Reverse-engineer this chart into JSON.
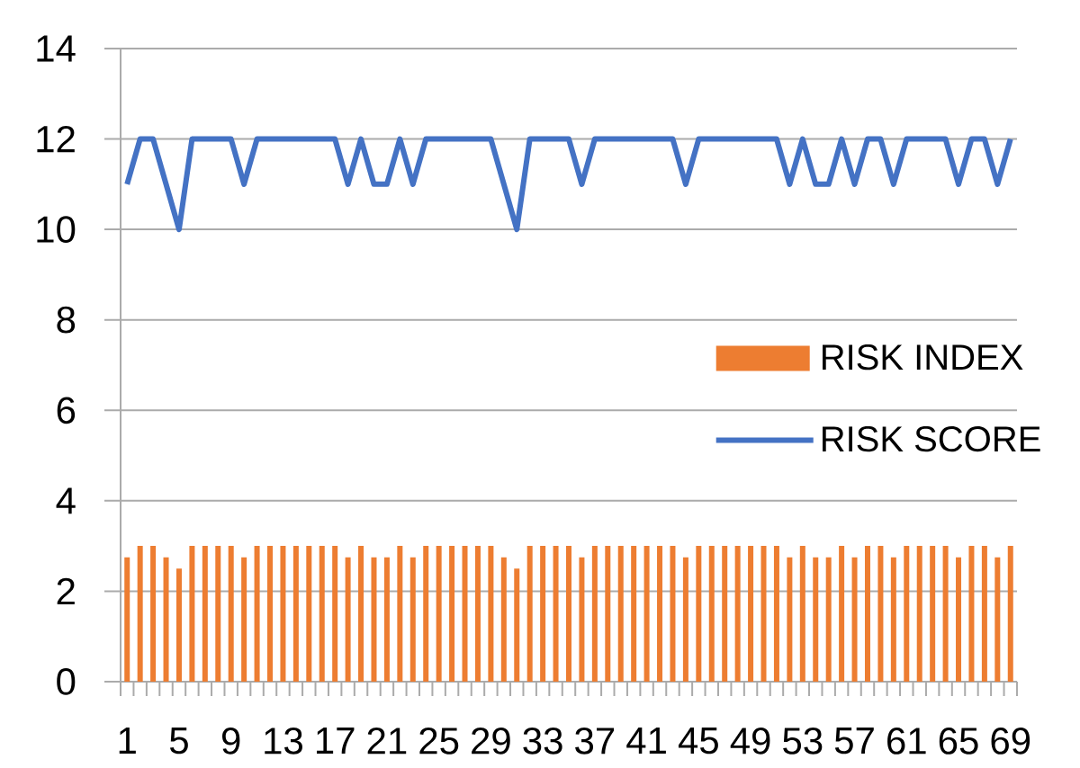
{
  "chart_data": {
    "type": "bar",
    "categories": [
      "1",
      null,
      null,
      null,
      "5",
      null,
      null,
      null,
      "9",
      null,
      null,
      null,
      "13",
      null,
      null,
      null,
      "17",
      null,
      null,
      null,
      "21",
      null,
      null,
      null,
      "25",
      null,
      null,
      null,
      "29",
      null,
      null,
      null,
      "33",
      null,
      null,
      null,
      "37",
      null,
      null,
      null,
      "41",
      null,
      null,
      null,
      "45",
      null,
      null,
      null,
      "49",
      null,
      null,
      null,
      "53",
      null,
      null,
      null,
      "57",
      null,
      null,
      null,
      "61",
      null,
      null,
      null,
      "65",
      null,
      null,
      null,
      "69"
    ],
    "series": [
      {
        "name": "RISK INDEX",
        "color": "#ed7d31",
        "values": [
          2.75,
          3,
          3,
          2.75,
          2.5,
          3,
          3,
          3,
          3,
          2.75,
          3,
          3,
          3,
          3,
          3,
          3,
          3,
          2.75,
          3,
          2.75,
          2.75,
          3,
          2.75,
          3,
          3,
          3,
          3,
          3,
          3,
          2.75,
          2.5,
          3,
          3,
          3,
          3,
          2.75,
          3,
          3,
          3,
          3,
          3,
          3,
          3,
          2.75,
          3,
          3,
          3,
          3,
          3,
          3,
          3,
          2.75,
          3,
          2.75,
          2.75,
          3,
          2.75,
          3,
          3,
          2.75,
          3,
          3,
          3,
          3,
          2.75,
          3,
          3,
          2.75,
          3
        ]
      },
      {
        "name": "RISK SCORE",
        "type": "line",
        "color": "#4472c4",
        "values": [
          11,
          12,
          12,
          11,
          10,
          12,
          12,
          12,
          12,
          11,
          12,
          12,
          12,
          12,
          12,
          12,
          12,
          11,
          12,
          11,
          11,
          12,
          11,
          12,
          12,
          12,
          12,
          12,
          12,
          11,
          10,
          12,
          12,
          12,
          12,
          11,
          12,
          12,
          12,
          12,
          12,
          12,
          12,
          11,
          12,
          12,
          12,
          12,
          12,
          12,
          12,
          11,
          12,
          11,
          11,
          12,
          11,
          12,
          12,
          11,
          12,
          12,
          12,
          12,
          11,
          12,
          12,
          11,
          12
        ]
      }
    ],
    "ylim": [
      0,
      14
    ],
    "yticks": [
      0,
      2,
      4,
      6,
      8,
      10,
      12,
      14
    ],
    "grid": "y",
    "legend": "right"
  }
}
